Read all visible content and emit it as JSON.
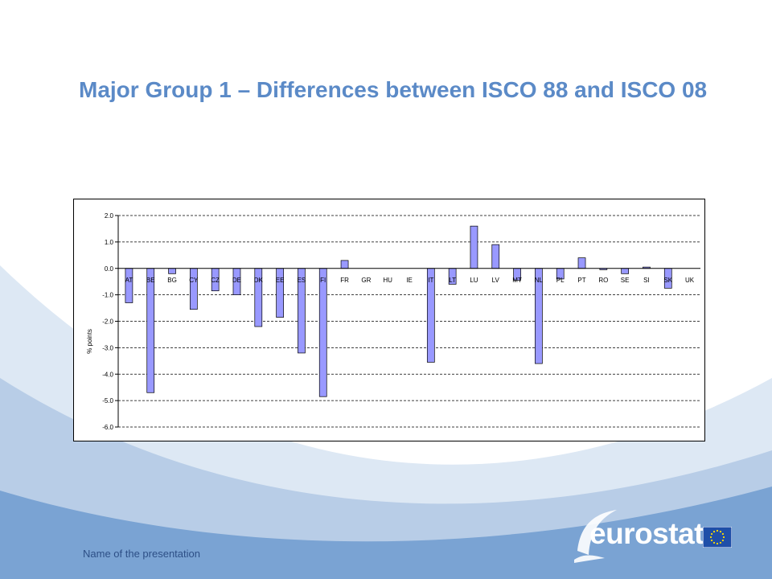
{
  "slide": {
    "title": "Major Group 1 – Differences between ISCO 88 and ISCO 08",
    "footer": "Name of the presentation",
    "logo_text": "eurostat",
    "colors": {
      "title": "#5b8ac7",
      "band": "#7aa3d3",
      "bar": "#9999ff",
      "footer": "#2d4f86"
    }
  },
  "chart_data": {
    "type": "bar",
    "title": "",
    "xlabel": "",
    "ylabel": "% points",
    "categories": [
      "AT",
      "BE",
      "BG",
      "CY",
      "CZ",
      "DE",
      "DK",
      "EE",
      "ES",
      "FI",
      "FR",
      "GR",
      "HU",
      "IE",
      "IT",
      "LT",
      "LU",
      "LV",
      "MT",
      "NL",
      "PL",
      "PT",
      "RO",
      "SE",
      "SI",
      "SK",
      "UK"
    ],
    "values": [
      -1.3,
      -4.7,
      -0.2,
      -1.55,
      -0.85,
      -1.0,
      -2.2,
      -1.85,
      -3.2,
      -4.85,
      0.3,
      0,
      0,
      0,
      -3.55,
      -0.6,
      1.6,
      0.9,
      -0.45,
      -3.6,
      -0.4,
      0.4,
      -0.05,
      -0.2,
      0.05,
      -0.75,
      0
    ],
    "yticks": [
      "2.0",
      "1.0",
      "0.0",
      "-1.0",
      "-2.0",
      "-3.0",
      "-4.0",
      "-5.0",
      "-6.0"
    ],
    "ylim": [
      -6,
      2
    ],
    "grid": true,
    "bar_color": "#9999ff"
  }
}
